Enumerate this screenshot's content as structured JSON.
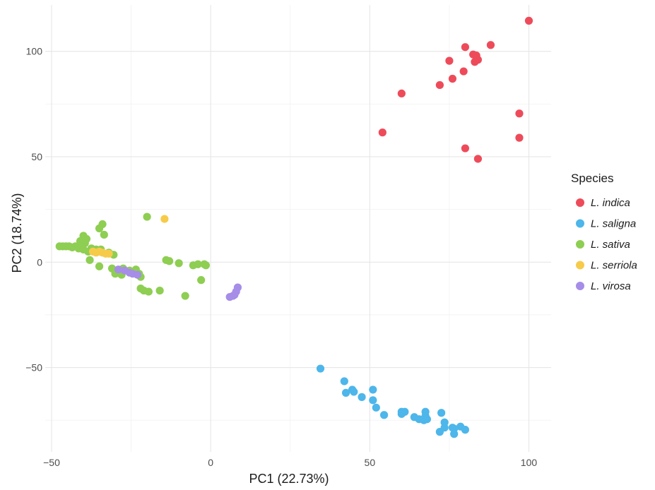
{
  "chart_data": {
    "type": "scatter",
    "xlabel": "PC1 (22.73%)",
    "ylabel": "PC2 (18.74%)",
    "xlim": [
      -52,
      107
    ],
    "ylim": [
      -90,
      122
    ],
    "x_ticks": [
      -50,
      0,
      50,
      100
    ],
    "y_ticks": [
      -50,
      0,
      50,
      100
    ],
    "x_tick_labels": [
      "−50",
      "0",
      "50",
      "100"
    ],
    "y_tick_labels": [
      "−50",
      "0",
      "50",
      "100"
    ],
    "grid": true,
    "legend": {
      "title": "Species",
      "position": "right"
    },
    "series": [
      {
        "name": "L. indica",
        "color": "#ee4b5a",
        "points": [
          [
            100,
            114.5
          ],
          [
            88,
            103
          ],
          [
            80,
            102
          ],
          [
            82.5,
            98.5
          ],
          [
            83.5,
            98
          ],
          [
            84,
            96
          ],
          [
            83,
            95
          ],
          [
            75,
            95.5
          ],
          [
            79.5,
            90.5
          ],
          [
            76,
            87
          ],
          [
            72,
            84
          ],
          [
            60,
            80
          ],
          [
            97,
            70.5
          ],
          [
            54,
            61.5
          ],
          [
            97,
            59
          ],
          [
            80,
            54
          ],
          [
            84,
            49
          ]
        ]
      },
      {
        "name": "L. saligna",
        "color": "#4db6ea",
        "points": [
          [
            34.5,
            -50.5
          ],
          [
            42,
            -56.5
          ],
          [
            44.5,
            -60.5
          ],
          [
            45,
            -61.5
          ],
          [
            42.5,
            -62
          ],
          [
            47.5,
            -64
          ],
          [
            51,
            -60.5
          ],
          [
            51,
            -65.5
          ],
          [
            52,
            -69
          ],
          [
            60,
            -71
          ],
          [
            61,
            -71
          ],
          [
            60,
            -72
          ],
          [
            54.5,
            -72.5
          ],
          [
            64,
            -73.5
          ],
          [
            67.5,
            -71
          ],
          [
            67.5,
            -73
          ],
          [
            68,
            -74.5
          ],
          [
            65.5,
            -74.5
          ],
          [
            67,
            -75
          ],
          [
            72.5,
            -71.5
          ],
          [
            73.5,
            -76
          ],
          [
            73.5,
            -78.5
          ],
          [
            76,
            -78.5
          ],
          [
            78.5,
            -78
          ],
          [
            76.5,
            -79
          ],
          [
            80,
            -79.5
          ],
          [
            72,
            -80.5
          ],
          [
            76.5,
            -81.5
          ]
        ]
      },
      {
        "name": "L. sativa",
        "color": "#8ece52",
        "points": [
          [
            -47.5,
            7.5
          ],
          [
            -46.5,
            7.5
          ],
          [
            -45.5,
            7.5
          ],
          [
            -44.5,
            7.5
          ],
          [
            -43.5,
            7
          ],
          [
            -42.5,
            7.5
          ],
          [
            -41.5,
            6.5
          ],
          [
            -40.5,
            7
          ],
          [
            -40,
            8.5
          ],
          [
            -39.5,
            9
          ],
          [
            -41,
            10
          ],
          [
            -40,
            11
          ],
          [
            -40,
            12.5
          ],
          [
            -39,
            11
          ],
          [
            -40,
            6
          ],
          [
            -38.5,
            5
          ],
          [
            -37.5,
            6.5
          ],
          [
            -36,
            6
          ],
          [
            -35,
            5
          ],
          [
            -34,
            18
          ],
          [
            -35,
            16
          ],
          [
            -33.5,
            13
          ],
          [
            -34.5,
            6
          ],
          [
            -32,
            4.5
          ],
          [
            -30.5,
            3.5
          ],
          [
            -38,
            1
          ],
          [
            -35,
            -2
          ],
          [
            -31,
            -3
          ],
          [
            -30,
            -5.5
          ],
          [
            -28,
            -6
          ],
          [
            -27.5,
            -3
          ],
          [
            -25.5,
            -4
          ],
          [
            -23.5,
            -3.5
          ],
          [
            -22.5,
            -5.5
          ],
          [
            -22,
            -7
          ],
          [
            -20,
            21.5
          ],
          [
            -14,
            1
          ],
          [
            -13,
            0.5
          ],
          [
            -10,
            -0.5
          ],
          [
            -5.5,
            -1.5
          ],
          [
            -4,
            -1
          ],
          [
            -2,
            -1
          ],
          [
            -3,
            -8.5
          ],
          [
            -1.5,
            -1.5
          ],
          [
            -22,
            -12.5
          ],
          [
            -21,
            -13.5
          ],
          [
            -19.5,
            -14
          ],
          [
            -16,
            -13.5
          ],
          [
            -8,
            -16
          ]
        ]
      },
      {
        "name": "L. serriola",
        "color": "#f7cb4a",
        "points": [
          [
            -37,
            5
          ],
          [
            -36,
            4.5
          ],
          [
            -35,
            5
          ],
          [
            -34,
            4.5
          ],
          [
            -33,
            4
          ],
          [
            -32,
            4
          ],
          [
            -14.5,
            20.5
          ]
        ]
      },
      {
        "name": "L. virosa",
        "color": "#a68de8",
        "points": [
          [
            -29,
            -3.5
          ],
          [
            -27,
            -4
          ],
          [
            -25.5,
            -5
          ],
          [
            -24.5,
            -5.5
          ],
          [
            -23,
            -6
          ],
          [
            6,
            -16.5
          ],
          [
            7,
            -16
          ],
          [
            7.5,
            -15.5
          ],
          [
            8,
            -14
          ],
          [
            8.5,
            -12
          ]
        ]
      }
    ]
  }
}
